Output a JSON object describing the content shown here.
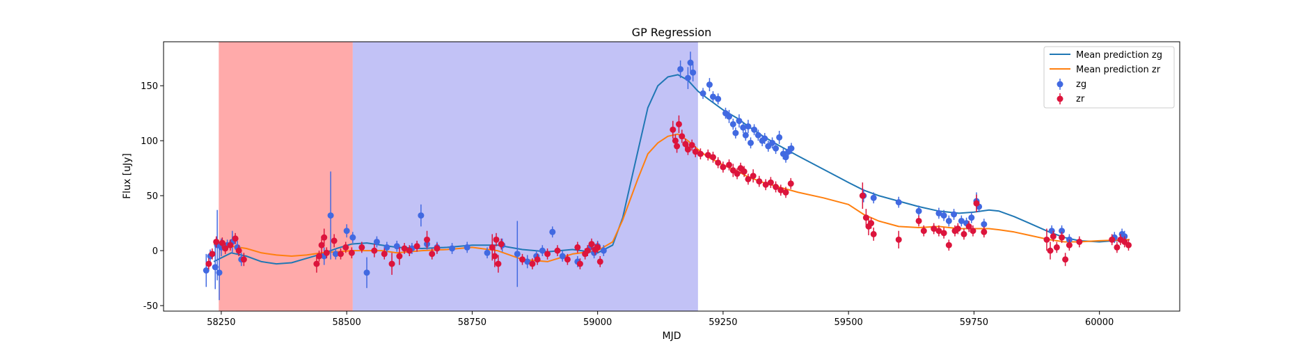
{
  "chart_data": {
    "type": "scatter",
    "title": "GP Regression",
    "xlabel": "MJD",
    "ylabel": "Flux [uJy]",
    "xlim": [
      58135,
      60160
    ],
    "ylim": [
      -55,
      190
    ],
    "x_ticks": [
      58250,
      58500,
      58750,
      59000,
      59250,
      59500,
      59750,
      60000
    ],
    "y_ticks": [
      -50,
      0,
      50,
      100,
      150
    ],
    "grid": false,
    "legend_position": "top-right",
    "shaded_regions": [
      {
        "x0": 58245,
        "x1": 58512,
        "color": "#ff5555",
        "opacity": 0.5
      },
      {
        "x0": 58512,
        "x1": 59200,
        "color": "#9090ee",
        "opacity": 0.55
      }
    ],
    "series": [
      {
        "name": "Mean prediction zg",
        "kind": "line",
        "color": "#1f77b4",
        "x": [
          58235,
          58270,
          58300,
          58330,
          58360,
          58390,
          58420,
          58450,
          58480,
          58510,
          58540,
          58570,
          58600,
          58650,
          58700,
          58750,
          58800,
          58850,
          58900,
          58950,
          59000,
          59030,
          59050,
          59080,
          59100,
          59120,
          59140,
          59160,
          59180,
          59200,
          59220,
          59250,
          59280,
          59300,
          59330,
          59360,
          59400,
          59450,
          59500,
          59530,
          59560,
          59600,
          59640,
          59680,
          59720,
          59750,
          59780,
          59800,
          59830,
          59860,
          59900,
          59930,
          59960,
          60000,
          60060
        ],
        "y": [
          -10,
          -2,
          -5,
          -10,
          -12,
          -11,
          -7,
          -3,
          2,
          6,
          7,
          5,
          3,
          2,
          3,
          5,
          5,
          1,
          -1,
          1,
          -2,
          5,
          30,
          90,
          130,
          150,
          158,
          160,
          155,
          145,
          138,
          128,
          120,
          113,
          104,
          96,
          86,
          74,
          62,
          55,
          50,
          45,
          40,
          36,
          34,
          35,
          37,
          36,
          31,
          25,
          17,
          12,
          9,
          8,
          10
        ]
      },
      {
        "name": "Mean prediction zr",
        "kind": "line",
        "color": "#ff7f0e",
        "x": [
          58235,
          58270,
          58300,
          58330,
          58360,
          58390,
          58420,
          58450,
          58480,
          58510,
          58540,
          58570,
          58600,
          58650,
          58700,
          58750,
          58800,
          58850,
          58900,
          58950,
          59000,
          59030,
          59050,
          59080,
          59100,
          59120,
          59140,
          59160,
          59180,
          59200,
          59220,
          59250,
          59280,
          59300,
          59330,
          59360,
          59400,
          59450,
          59500,
          59530,
          59560,
          59600,
          59640,
          59680,
          59720,
          59750,
          59780,
          59800,
          59830,
          59860,
          59900,
          59930,
          59960,
          60000,
          60060
        ],
        "y": [
          6,
          4,
          2,
          -2,
          -4,
          -5,
          -4,
          -2,
          -1,
          0,
          0,
          0,
          -2,
          0,
          1,
          3,
          0,
          -8,
          -10,
          -3,
          0,
          8,
          28,
          65,
          88,
          98,
          104,
          106,
          100,
          92,
          85,
          78,
          72,
          67,
          62,
          58,
          53,
          48,
          42,
          33,
          27,
          22,
          21,
          22,
          20,
          20,
          20,
          19,
          17,
          14,
          10,
          8,
          8,
          9,
          10
        ]
      },
      {
        "name": "zg",
        "kind": "points",
        "color": "#4169e1",
        "points": [
          [
            58220,
            -18,
            15
          ],
          [
            58228,
            -5,
            6
          ],
          [
            58238,
            -15,
            20
          ],
          [
            58242,
            5,
            32
          ],
          [
            58246,
            -20,
            25
          ],
          [
            58250,
            3,
            8
          ],
          [
            58262,
            5,
            5
          ],
          [
            58272,
            8,
            10
          ],
          [
            58282,
            3,
            6
          ],
          [
            58290,
            -8,
            6
          ],
          [
            58455,
            -5,
            8
          ],
          [
            58468,
            32,
            40
          ],
          [
            58478,
            -3,
            5
          ],
          [
            58500,
            18,
            6
          ],
          [
            58512,
            12,
            5
          ],
          [
            58540,
            -20,
            14
          ],
          [
            58560,
            8,
            5
          ],
          [
            58580,
            3,
            5
          ],
          [
            58600,
            4,
            5
          ],
          [
            58630,
            2,
            5
          ],
          [
            58648,
            32,
            10
          ],
          [
            58660,
            6,
            5
          ],
          [
            58680,
            3,
            5
          ],
          [
            58710,
            2,
            5
          ],
          [
            58740,
            3,
            5
          ],
          [
            58780,
            -2,
            5
          ],
          [
            58810,
            5,
            6
          ],
          [
            58840,
            -3,
            30
          ],
          [
            58860,
            -10,
            6
          ],
          [
            58878,
            -5,
            5
          ],
          [
            58890,
            0,
            5
          ],
          [
            58910,
            17,
            5
          ],
          [
            58930,
            -5,
            5
          ],
          [
            58960,
            -10,
            5
          ],
          [
            58985,
            3,
            5
          ],
          [
            58993,
            -2,
            5
          ],
          [
            59000,
            4,
            5
          ],
          [
            59012,
            0,
            5
          ],
          [
            59165,
            165,
            8
          ],
          [
            59180,
            157,
            10
          ],
          [
            59185,
            171,
            10
          ],
          [
            59190,
            162,
            8
          ],
          [
            59210,
            143,
            5
          ],
          [
            59223,
            151,
            6
          ],
          [
            59230,
            140,
            5
          ],
          [
            59240,
            138,
            5
          ],
          [
            59255,
            125,
            5
          ],
          [
            59262,
            122,
            6
          ],
          [
            59270,
            115,
            5
          ],
          [
            59275,
            107,
            5
          ],
          [
            59282,
            118,
            6
          ],
          [
            59290,
            112,
            5
          ],
          [
            59295,
            105,
            5
          ],
          [
            59300,
            113,
            6
          ],
          [
            59305,
            98,
            5
          ],
          [
            59312,
            110,
            5
          ],
          [
            59320,
            105,
            5
          ],
          [
            59328,
            100,
            5
          ],
          [
            59333,
            102,
            5
          ],
          [
            59340,
            95,
            5
          ],
          [
            59348,
            98,
            5
          ],
          [
            59355,
            93,
            5
          ],
          [
            59362,
            103,
            6
          ],
          [
            59370,
            88,
            5
          ],
          [
            59375,
            85,
            5
          ],
          [
            59380,
            90,
            5
          ],
          [
            59386,
            93,
            5
          ],
          [
            59530,
            50,
            6
          ],
          [
            59550,
            48,
            5
          ],
          [
            59600,
            44,
            5
          ],
          [
            59640,
            36,
            5
          ],
          [
            59680,
            34,
            5
          ],
          [
            59690,
            32,
            5
          ],
          [
            59700,
            27,
            5
          ],
          [
            59710,
            33,
            5
          ],
          [
            59725,
            27,
            5
          ],
          [
            59735,
            25,
            5
          ],
          [
            59745,
            30,
            5
          ],
          [
            59755,
            45,
            8
          ],
          [
            59760,
            40,
            5
          ],
          [
            59770,
            24,
            5
          ],
          [
            59905,
            18,
            5
          ],
          [
            59925,
            18,
            5
          ],
          [
            59940,
            10,
            5
          ],
          [
            60030,
            12,
            5
          ],
          [
            60045,
            15,
            5
          ],
          [
            60050,
            13,
            5
          ]
        ]
      },
      {
        "name": "zr",
        "kind": "points",
        "color": "#dc143c",
        "points": [
          [
            58225,
            -12,
            5
          ],
          [
            58232,
            -3,
            5
          ],
          [
            58240,
            8,
            5
          ],
          [
            58252,
            7,
            5
          ],
          [
            58258,
            2,
            5
          ],
          [
            58268,
            5,
            5
          ],
          [
            58278,
            11,
            5
          ],
          [
            58285,
            0,
            5
          ],
          [
            58295,
            -8,
            6
          ],
          [
            58440,
            -12,
            8
          ],
          [
            58445,
            -5,
            5
          ],
          [
            58450,
            5,
            8
          ],
          [
            58455,
            12,
            8
          ],
          [
            58460,
            -2,
            5
          ],
          [
            58475,
            9,
            6
          ],
          [
            58488,
            -3,
            5
          ],
          [
            58498,
            3,
            5
          ],
          [
            58510,
            -2,
            5
          ],
          [
            58530,
            3,
            5
          ],
          [
            58555,
            0,
            6
          ],
          [
            58575,
            -3,
            5
          ],
          [
            58590,
            -12,
            10
          ],
          [
            58605,
            -5,
            8
          ],
          [
            58615,
            2,
            5
          ],
          [
            58625,
            0,
            5
          ],
          [
            58640,
            4,
            5
          ],
          [
            58660,
            10,
            8
          ],
          [
            58670,
            -3,
            5
          ],
          [
            58680,
            2,
            5
          ],
          [
            58790,
            3,
            12
          ],
          [
            58795,
            -5,
            10
          ],
          [
            58798,
            10,
            6
          ],
          [
            58802,
            -12,
            8
          ],
          [
            58808,
            6,
            5
          ],
          [
            58850,
            -8,
            5
          ],
          [
            58870,
            -12,
            5
          ],
          [
            58880,
            -8,
            5
          ],
          [
            58900,
            -3,
            5
          ],
          [
            58920,
            0,
            5
          ],
          [
            58940,
            -8,
            5
          ],
          [
            58960,
            3,
            5
          ],
          [
            58965,
            -12,
            5
          ],
          [
            58975,
            -3,
            5
          ],
          [
            58980,
            0,
            5
          ],
          [
            58988,
            6,
            5
          ],
          [
            58995,
            1,
            5
          ],
          [
            59000,
            3,
            5
          ],
          [
            59005,
            -10,
            5
          ],
          [
            59150,
            110,
            8
          ],
          [
            59155,
            100,
            6
          ],
          [
            59158,
            95,
            6
          ],
          [
            59162,
            115,
            8
          ],
          [
            59168,
            104,
            6
          ],
          [
            59175,
            97,
            5
          ],
          [
            59180,
            92,
            5
          ],
          [
            59188,
            96,
            5
          ],
          [
            59195,
            90,
            5
          ],
          [
            59205,
            88,
            5
          ],
          [
            59220,
            87,
            5
          ],
          [
            59230,
            85,
            5
          ],
          [
            59240,
            80,
            5
          ],
          [
            59250,
            76,
            5
          ],
          [
            59262,
            78,
            5
          ],
          [
            59270,
            73,
            6
          ],
          [
            59278,
            70,
            5
          ],
          [
            59285,
            75,
            5
          ],
          [
            59292,
            72,
            5
          ],
          [
            59300,
            65,
            5
          ],
          [
            59310,
            68,
            6
          ],
          [
            59322,
            63,
            5
          ],
          [
            59335,
            60,
            5
          ],
          [
            59345,
            62,
            5
          ],
          [
            59355,
            58,
            5
          ],
          [
            59365,
            55,
            5
          ],
          [
            59375,
            53,
            5
          ],
          [
            59385,
            61,
            5
          ],
          [
            59528,
            50,
            12
          ],
          [
            59535,
            30,
            8
          ],
          [
            59540,
            22,
            8
          ],
          [
            59545,
            25,
            5
          ],
          [
            59550,
            15,
            6
          ],
          [
            59600,
            10,
            8
          ],
          [
            59640,
            27,
            5
          ],
          [
            59650,
            18,
            5
          ],
          [
            59670,
            20,
            5
          ],
          [
            59680,
            18,
            5
          ],
          [
            59690,
            16,
            5
          ],
          [
            59700,
            5,
            5
          ],
          [
            59712,
            18,
            5
          ],
          [
            59718,
            20,
            5
          ],
          [
            59730,
            15,
            5
          ],
          [
            59740,
            22,
            5
          ],
          [
            59748,
            18,
            5
          ],
          [
            59755,
            43,
            8
          ],
          [
            59770,
            17,
            5
          ],
          [
            59895,
            10,
            10
          ],
          [
            59902,
            0,
            8
          ],
          [
            59908,
            13,
            5
          ],
          [
            59915,
            3,
            5
          ],
          [
            59925,
            12,
            5
          ],
          [
            59932,
            -8,
            6
          ],
          [
            59940,
            5,
            5
          ],
          [
            59960,
            8,
            5
          ],
          [
            60025,
            10,
            5
          ],
          [
            60035,
            3,
            5
          ],
          [
            60042,
            10,
            5
          ],
          [
            60050,
            8,
            5
          ],
          [
            60058,
            5,
            5
          ]
        ]
      }
    ]
  }
}
